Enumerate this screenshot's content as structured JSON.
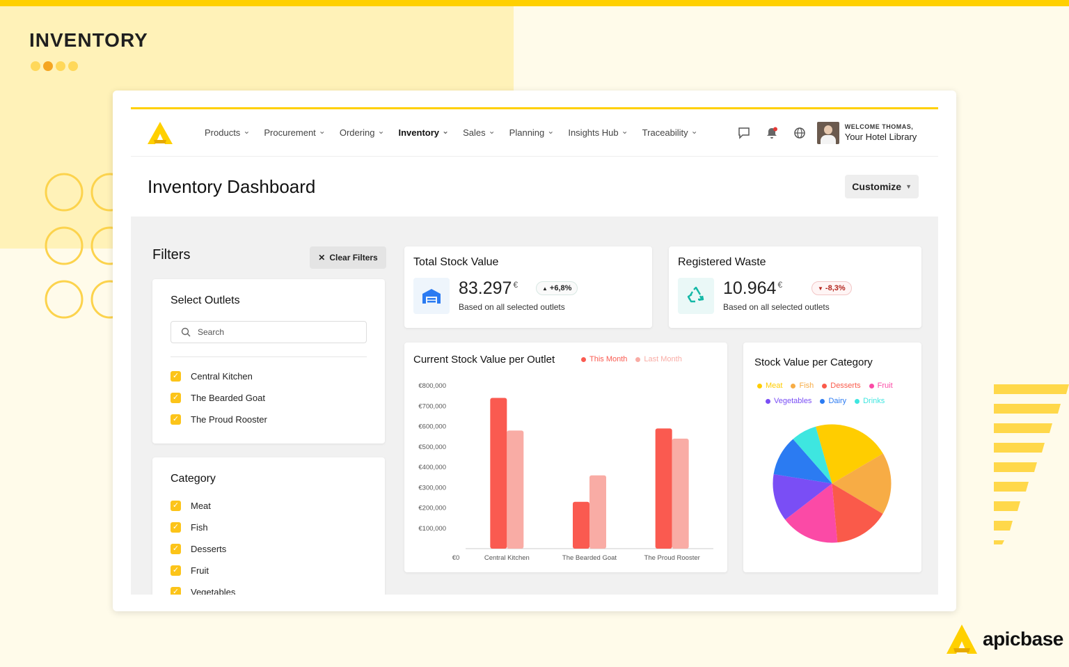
{
  "page_label": "INVENTORY",
  "brand": {
    "name": "apicbase",
    "color": "#ffd000"
  },
  "nav": {
    "items": [
      {
        "label": "Products",
        "active": false
      },
      {
        "label": "Procurement",
        "active": false
      },
      {
        "label": "Ordering",
        "active": false
      },
      {
        "label": "Inventory",
        "active": true
      },
      {
        "label": "Sales",
        "active": false
      },
      {
        "label": "Planning",
        "active": false
      },
      {
        "label": "Insights Hub",
        "active": false
      },
      {
        "label": "Traceability",
        "active": false
      }
    ],
    "icons": [
      "chat-icon",
      "bell-icon",
      "globe-icon"
    ]
  },
  "user": {
    "welcome": "WELCOME THOMAS,",
    "account": "Your Hotel Library"
  },
  "page_title": "Inventory Dashboard",
  "customize_label": "Customize",
  "filters": {
    "title": "Filters",
    "clear_label": "Clear Filters",
    "outlets": {
      "title": "Select Outlets",
      "search_placeholder": "Search",
      "items": [
        "Central Kitchen",
        "The Bearded Goat",
        "The Proud Rooster"
      ]
    },
    "category": {
      "title": "Category",
      "items": [
        "Meat",
        "Fish",
        "Desserts",
        "Fruit",
        "Vegetables"
      ]
    }
  },
  "kpis": {
    "total_stock": {
      "title": "Total Stock Value",
      "value": "83.297",
      "currency": "€",
      "change": "+6,8%",
      "direction": "up",
      "subtitle": "Based on all selected outlets"
    },
    "waste": {
      "title": "Registered Waste",
      "value": "10.964",
      "currency": "€",
      "change": "-8,3%",
      "direction": "down",
      "subtitle": "Based on all selected outlets"
    }
  },
  "chart_data": [
    {
      "type": "bar",
      "title": "Current Stock Value per Outlet",
      "categories": [
        "Central Kitchen",
        "The Bearded Goat",
        "The Proud Rooster"
      ],
      "series": [
        {
          "name": "This Month",
          "color": "#fa5a50",
          "values": [
            740000,
            230000,
            590000
          ]
        },
        {
          "name": "Last Month",
          "color": "#f9aca5",
          "values": [
            580000,
            360000,
            540000
          ]
        }
      ],
      "y_ticks": [
        "€0",
        "€100,000",
        "€200,000",
        "€300,000",
        "€400,000",
        "€500,000",
        "€600,000",
        "€700,000",
        "€800,000"
      ],
      "ylim": [
        0,
        800000
      ],
      "legend_position": "top-right"
    },
    {
      "type": "pie",
      "title": "Stock Value per Category",
      "slices": [
        {
          "label": "Meat",
          "value": 21,
          "color": "#ffcd00"
        },
        {
          "label": "Fish",
          "value": 17,
          "color": "#f7ac45"
        },
        {
          "label": "Desserts",
          "value": 15,
          "color": "#fa5a4a"
        },
        {
          "label": "Fruit",
          "value": 16,
          "color": "#fb4aa6"
        },
        {
          "label": "Vegetables",
          "value": 13,
          "color": "#7a4ef5"
        },
        {
          "label": "Dairy",
          "value": 11,
          "color": "#2b7bf2"
        },
        {
          "label": "Drinks",
          "value": 7,
          "color": "#3ee6e0"
        }
      ],
      "legend_position": "top"
    }
  ]
}
